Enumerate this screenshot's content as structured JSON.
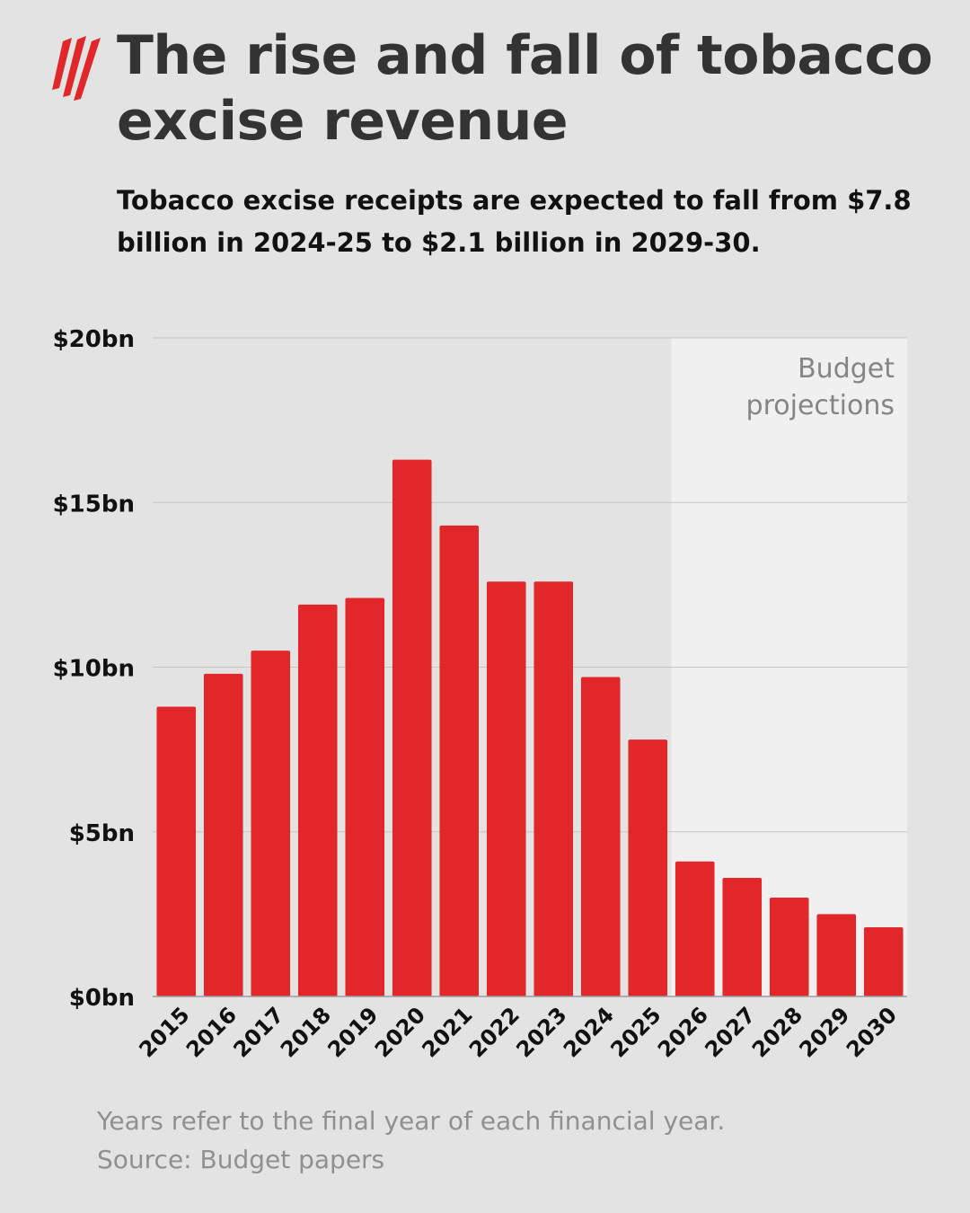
{
  "title": "The rise and fall of tobacco excise revenue",
  "subtitle": "Tobacco excise receipts are expected to fall from $7.8 billion in 2024-25 to $2.1 billion in 2029-30.",
  "footnotes": [
    "Years refer to the final year of each financial year.",
    "Source: Budget papers"
  ],
  "logo": {
    "icon": "sbs-logo-icon",
    "color": "#e2272a"
  },
  "chart_data": {
    "type": "bar",
    "title": "The rise and fall of tobacco excise revenue",
    "subtitle": "Tobacco excise receipts are expected to fall from $7.8 billion in 2024-25 to $2.1 billion in 2029-30.",
    "categories": [
      "2015",
      "2016",
      "2017",
      "2018",
      "2019",
      "2020",
      "2021",
      "2022",
      "2023",
      "2024",
      "2025",
      "2026",
      "2027",
      "2028",
      "2029",
      "2030"
    ],
    "values": [
      8.8,
      9.8,
      10.5,
      11.9,
      12.1,
      16.3,
      14.3,
      12.6,
      12.6,
      9.7,
      7.8,
      4.1,
      3.6,
      3.0,
      2.5,
      2.1
    ],
    "ylim": [
      0,
      20
    ],
    "yticks": [
      0,
      5,
      10,
      15,
      20
    ],
    "ytick_labels": [
      "$0bn",
      "$5bn",
      "$10bn",
      "$15bn",
      "$20bn"
    ],
    "xlabel": "",
    "ylabel": "",
    "grid": true,
    "bar_color": "#e2272a",
    "projection": {
      "label_lines": [
        "Budget",
        "projections"
      ],
      "from_category": "2026",
      "to_category": "2030",
      "shade_color": "#f0f0f0"
    }
  }
}
